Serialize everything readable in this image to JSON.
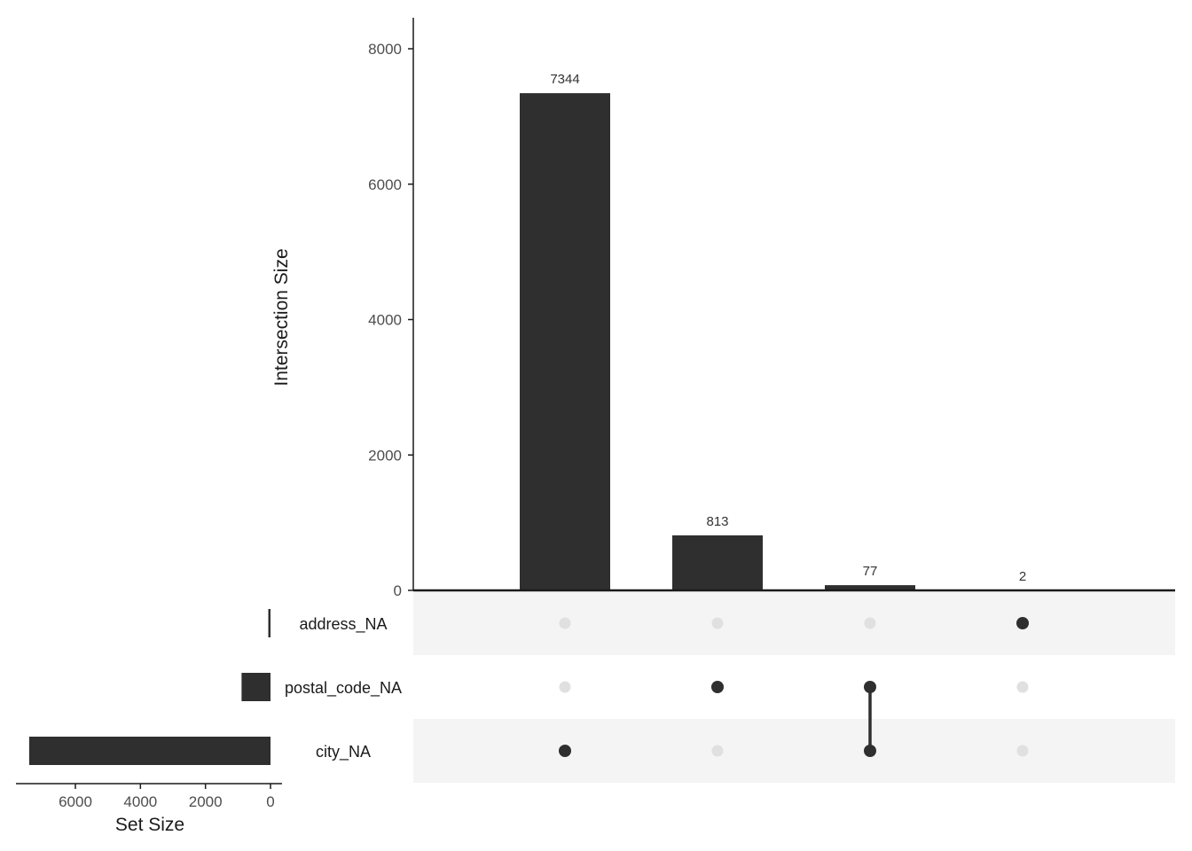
{
  "chart_data": {
    "type": "upset",
    "intersections": {
      "ylabel": "Intersection Size",
      "ylim": [
        0,
        8000
      ],
      "ticks": [
        0,
        2000,
        4000,
        6000,
        8000
      ],
      "values": [
        7344,
        813,
        77,
        2
      ],
      "labels": [
        "7344",
        "813",
        "77",
        "2"
      ],
      "members": [
        [
          "city_NA"
        ],
        [
          "postal_code_NA"
        ],
        [
          "postal_code_NA",
          "city_NA"
        ],
        [
          "address_NA"
        ]
      ]
    },
    "sets": {
      "xlabel": "Set Size",
      "names": [
        "address_NA",
        "postal_code_NA",
        "city_NA"
      ],
      "values": [
        2,
        890,
        7421
      ],
      "ticks": [
        6000,
        4000,
        2000,
        0
      ],
      "xlim_reversed": [
        0,
        8000
      ]
    },
    "colors": {
      "bar": "#2f2f2f",
      "dot_active": "#2f2f2f",
      "dot_inactive": "#e0e0e0",
      "stripe": "#f4f4f4"
    }
  }
}
